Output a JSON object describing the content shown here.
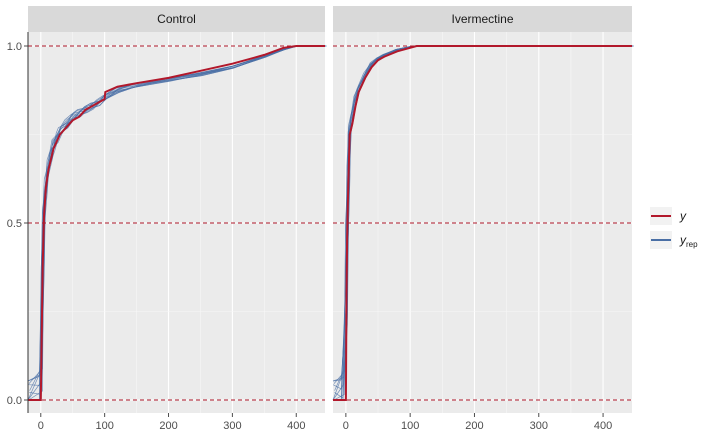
{
  "chart_data": {
    "type": "line",
    "xlim": [
      -20,
      445
    ],
    "ylim": [
      -0.01,
      1.01
    ],
    "x_ticks": [
      0,
      100,
      200,
      300,
      400
    ],
    "y_ticks": [
      0.0,
      0.5,
      1.0
    ],
    "y_tick_labels": [
      "0.0",
      "0.5",
      "1.0"
    ],
    "reference_lines_y": [
      0.0,
      0.5,
      1.0
    ],
    "grid": true,
    "legend_position": "right",
    "legend": [
      {
        "key": "y",
        "label": "y",
        "subscript": ""
      },
      {
        "key": "yrep",
        "label": "y",
        "subscript": "rep"
      }
    ],
    "colors": {
      "y": "#b2182b",
      "yrep": "#4a6fa5",
      "panel_bg": "#ebebeb",
      "strip_bg": "#d9d9d9",
      "ref_line": "#b2182b"
    },
    "panels": [
      {
        "title": "Control",
        "y_series": {
          "x": [
            -20,
            0,
            3,
            5,
            8,
            12,
            16,
            20,
            25,
            30,
            40,
            50,
            60,
            70,
            80,
            90,
            100,
            101,
            120,
            150,
            200,
            250,
            300,
            320,
            350,
            380,
            400,
            420,
            445
          ],
          "y": [
            0.0,
            0.0,
            0.38,
            0.52,
            0.6,
            0.65,
            0.68,
            0.71,
            0.73,
            0.75,
            0.77,
            0.79,
            0.8,
            0.82,
            0.83,
            0.84,
            0.85,
            0.87,
            0.885,
            0.895,
            0.91,
            0.93,
            0.95,
            0.96,
            0.975,
            0.995,
            1.0,
            1.0,
            1.0
          ]
        },
        "yrep_base": {
          "x": [
            -20,
            0,
            3,
            5,
            8,
            12,
            16,
            20,
            25,
            30,
            40,
            50,
            60,
            70,
            80,
            90,
            100,
            120,
            150,
            200,
            250,
            300,
            350,
            380,
            400,
            445
          ],
          "y": [
            0.0,
            0.04,
            0.4,
            0.54,
            0.61,
            0.66,
            0.69,
            0.72,
            0.74,
            0.76,
            0.78,
            0.8,
            0.81,
            0.82,
            0.83,
            0.84,
            0.855,
            0.875,
            0.89,
            0.905,
            0.92,
            0.94,
            0.97,
            0.99,
            1.0,
            1.0
          ]
        }
      },
      {
        "title": "Ivermectine",
        "y_series": {
          "x": [
            -20,
            0,
            1,
            2,
            3,
            4,
            6,
            10,
            15,
            20,
            30,
            40,
            50,
            60,
            80,
            100,
            110,
            200,
            300,
            445
          ],
          "y": [
            0.0,
            0.0,
            0.3,
            0.45,
            0.55,
            0.62,
            0.75,
            0.78,
            0.83,
            0.87,
            0.91,
            0.94,
            0.96,
            0.97,
            0.985,
            0.995,
            1.0,
            1.0,
            1.0,
            1.0
          ]
        },
        "yrep_base": {
          "x": [
            -20,
            -5,
            0,
            2,
            4,
            6,
            10,
            15,
            20,
            30,
            40,
            50,
            60,
            80,
            100,
            110,
            445
          ],
          "y": [
            0.0,
            0.03,
            0.25,
            0.5,
            0.65,
            0.76,
            0.8,
            0.85,
            0.88,
            0.92,
            0.95,
            0.965,
            0.975,
            0.99,
            0.998,
            1.0,
            1.0
          ]
        }
      }
    ]
  }
}
